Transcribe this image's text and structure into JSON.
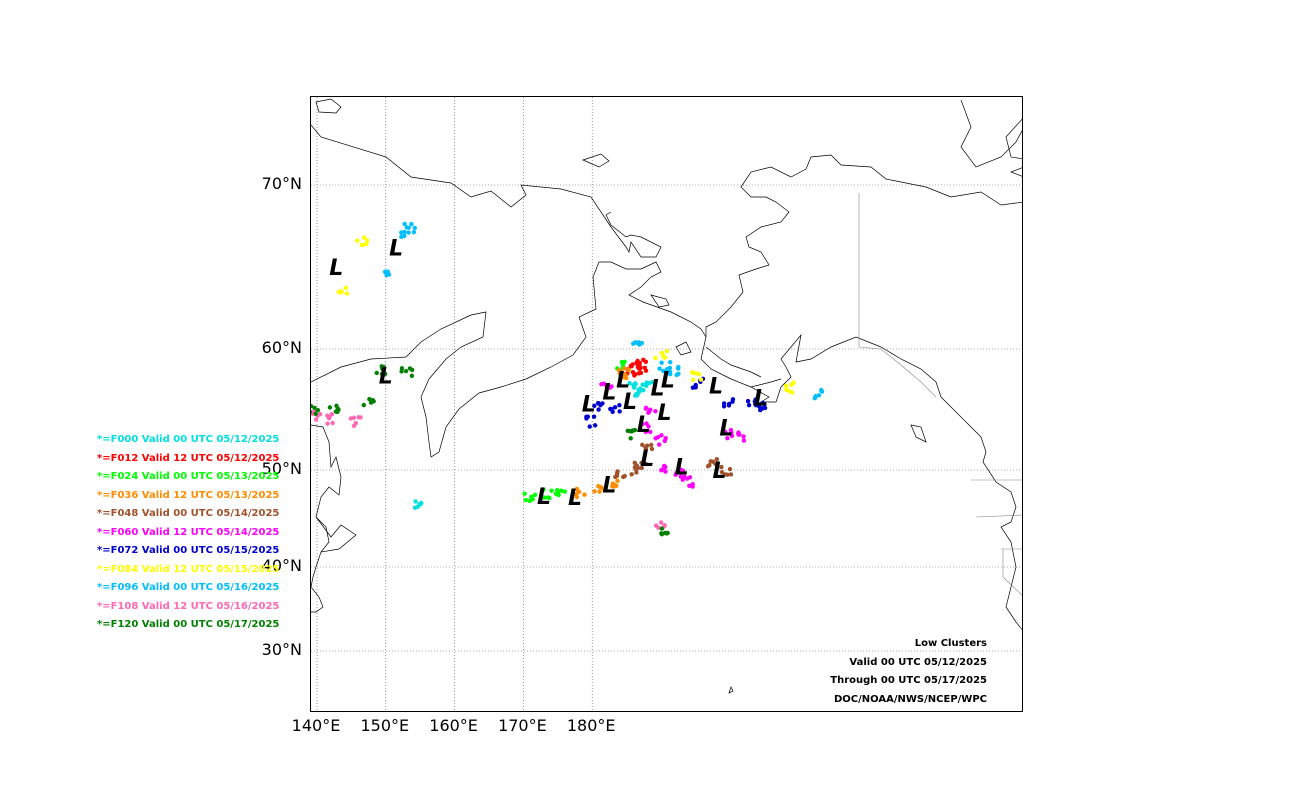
{
  "map": {
    "lat_labels": [
      "70°N",
      "60°N",
      "50°N",
      "40°N",
      "30°N"
    ],
    "lon_labels": [
      "140°E",
      "150°E",
      "160°E",
      "170°E",
      "180°E"
    ]
  },
  "legend": [
    {
      "label": "*=F000 Valid 00 UTC 05/12/2025",
      "color": "#00e0e0"
    },
    {
      "label": "*=F012 Valid 12 UTC 05/12/2025",
      "color": "#ff0000"
    },
    {
      "label": "*=F024 Valid 00 UTC 05/13/2025",
      "color": "#00ff00"
    },
    {
      "label": "*=F036 Valid 12 UTC 05/13/2025",
      "color": "#ff8c00"
    },
    {
      "label": "*=F048 Valid 00 UTC 05/14/2025",
      "color": "#a0522d"
    },
    {
      "label": "*=F060 Valid 12 UTC 05/14/2025",
      "color": "#ff00ff"
    },
    {
      "label": "*=F072 Valid 00 UTC 05/15/2025",
      "color": "#0000cd"
    },
    {
      "label": "*=F084 Valid 12 UTC 05/15/2025",
      "color": "#ffff00"
    },
    {
      "label": "*=F096 Valid 00 UTC 05/16/2025",
      "color": "#00bfff"
    },
    {
      "label": "*=F108 Valid 12 UTC 05/16/2025",
      "color": "#ff69b4"
    },
    {
      "label": "*=F120 Valid 00 UTC 05/17/2025",
      "color": "#008000"
    }
  ],
  "info": {
    "title": "Low Clusters",
    "valid": "Valid 00 UTC 05/12/2025",
    "through": "Through 00 UTC 05/17/2025",
    "credit": "DOC/NOAA/NWS/NCEP/WPC"
  },
  "low_centers": [
    {
      "lon": 142.8,
      "lat": 65.0
    },
    {
      "lon": 151.5,
      "lat": 66.2
    },
    {
      "lon": 150.0,
      "lat": 57.8
    },
    {
      "lon": 173.0,
      "lat": 47.3
    },
    {
      "lon": 177.5,
      "lat": 47.2
    },
    {
      "lon": 182.5,
      "lat": 48.5
    },
    {
      "lon": 179.5,
      "lat": 55.5
    },
    {
      "lon": 182.5,
      "lat": 56.5
    },
    {
      "lon": 184.5,
      "lat": 57.5
    },
    {
      "lon": 185.5,
      "lat": 55.7
    },
    {
      "lon": 187.5,
      "lat": 53.8
    },
    {
      "lon": 188.0,
      "lat": 51.0
    },
    {
      "lon": 189.5,
      "lat": 56.8
    },
    {
      "lon": 190.5,
      "lat": 54.8
    },
    {
      "lon": 191.0,
      "lat": 57.5
    },
    {
      "lon": 193.0,
      "lat": 50.3
    },
    {
      "lon": 198.0,
      "lat": 57.0
    },
    {
      "lon": 198.5,
      "lat": 50.0
    },
    {
      "lon": 199.5,
      "lat": 53.5
    },
    {
      "lon": 204.5,
      "lat": 56.0
    }
  ],
  "clusters": [
    {
      "color": "#00e0e0",
      "points": [
        [
          155.0,
          46.5
        ],
        [
          186.0,
          56.8
        ],
        [
          188.0,
          57.0
        ],
        [
          187.0,
          56.5
        ]
      ]
    },
    {
      "color": "#ff0000",
      "points": [
        [
          186.5,
          58.5
        ],
        [
          187.0,
          58.8
        ],
        [
          185.5,
          58.2
        ],
        [
          187.5,
          58.4
        ]
      ]
    },
    {
      "color": "#00ff00",
      "points": [
        [
          171.0,
          47.2
        ],
        [
          173.5,
          47.5
        ],
        [
          175.5,
          47.4
        ],
        [
          184.5,
          58.6
        ]
      ]
    },
    {
      "color": "#ff8c00",
      "points": [
        [
          178.5,
          47.6
        ],
        [
          181.0,
          48.2
        ],
        [
          183.0,
          48.8
        ],
        [
          184.0,
          57.9
        ],
        [
          185.0,
          58.0
        ]
      ]
    },
    {
      "color": "#a0522d",
      "points": [
        [
          187.0,
          50.5
        ],
        [
          188.0,
          51.8
        ],
        [
          186.5,
          49.8
        ],
        [
          197.5,
          50.5
        ],
        [
          199.5,
          50.0
        ],
        [
          184.0,
          49.5
        ]
      ]
    },
    {
      "color": "#ff00ff",
      "points": [
        [
          182.0,
          57.0
        ],
        [
          188.0,
          53.5
        ],
        [
          190.0,
          52.5
        ],
        [
          190.5,
          50.0
        ],
        [
          193.0,
          49.5
        ],
        [
          194.0,
          48.8
        ],
        [
          200.0,
          53.0
        ],
        [
          202.0,
          52.8
        ],
        [
          188.5,
          55.0
        ]
      ]
    },
    {
      "color": "#0000cd",
      "points": [
        [
          181.0,
          55.3
        ],
        [
          183.5,
          55.0
        ],
        [
          200.0,
          55.5
        ],
        [
          203.0,
          55.6
        ],
        [
          205.0,
          55.2
        ],
        [
          195.5,
          57.2
        ],
        [
          180.0,
          54.0
        ]
      ]
    },
    {
      "color": "#ffff00",
      "points": [
        [
          144.0,
          63.5
        ],
        [
          146.5,
          66.5
        ],
        [
          195.0,
          57.8
        ],
        [
          208.5,
          56.8
        ],
        [
          190.0,
          59.5
        ]
      ]
    },
    {
      "color": "#00bfff",
      "points": [
        [
          150.5,
          64.5
        ],
        [
          153.0,
          66.9
        ],
        [
          153.5,
          67.4
        ],
        [
          186.5,
          60.5
        ],
        [
          190.5,
          58.5
        ],
        [
          192.0,
          58.2
        ],
        [
          213.0,
          56.2
        ]
      ]
    },
    {
      "color": "#ff69b4",
      "points": [
        [
          140.0,
          54.5
        ],
        [
          142.0,
          54.2
        ],
        [
          145.5,
          54.0
        ],
        [
          190.0,
          44.5
        ]
      ]
    },
    {
      "color": "#008000",
      "points": [
        [
          139.5,
          55.0
        ],
        [
          142.5,
          55.0
        ],
        [
          147.5,
          55.6
        ],
        [
          149.5,
          58.3
        ],
        [
          153.0,
          58.0
        ],
        [
          190.5,
          43.5
        ],
        [
          186.0,
          53.0
        ]
      ]
    }
  ]
}
